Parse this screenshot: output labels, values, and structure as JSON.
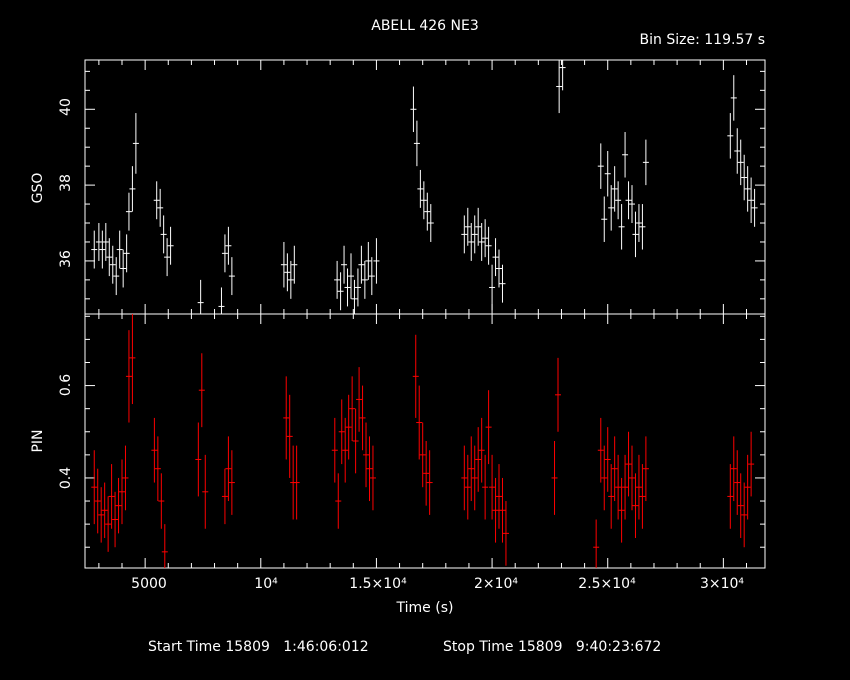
{
  "chart_data": [
    {
      "type": "scatter",
      "title": "ABELL 426 NE3",
      "subtitle": "Bin Size:  119.57 s",
      "ylabel": "GSO",
      "xlim": [
        2400,
        31800
      ],
      "ylim": [
        34.6,
        41.3
      ],
      "y_ticks": [
        "36",
        "38",
        "40"
      ],
      "grid": false,
      "color": "#ffffff",
      "points": [
        [
          2800,
          36.3,
          0.5
        ],
        [
          3000,
          36.5,
          0.5
        ],
        [
          3150,
          36.3,
          0.5
        ],
        [
          3300,
          36.5,
          0.5
        ],
        [
          3450,
          36.1,
          0.5
        ],
        [
          3600,
          35.9,
          0.5
        ],
        [
          3750,
          35.6,
          0.5
        ],
        [
          3900,
          36.3,
          0.5
        ],
        [
          4050,
          35.8,
          0.5
        ],
        [
          4200,
          36.2,
          0.5
        ],
        [
          4300,
          37.3,
          0.5
        ],
        [
          4450,
          37.9,
          0.6
        ],
        [
          4600,
          39.1,
          0.8
        ],
        [
          5500,
          37.6,
          0.5
        ],
        [
          5650,
          37.4,
          0.5
        ],
        [
          5800,
          36.7,
          0.5
        ],
        [
          5950,
          36.1,
          0.5
        ],
        [
          6100,
          36.4,
          0.5
        ],
        [
          7400,
          34.9,
          0.6
        ],
        [
          8300,
          34.8,
          0.5
        ],
        [
          8450,
          36.2,
          0.5
        ],
        [
          8600,
          36.4,
          0.5
        ],
        [
          8750,
          35.6,
          0.5
        ],
        [
          11000,
          35.9,
          0.6
        ],
        [
          11150,
          35.7,
          0.5
        ],
        [
          11300,
          35.5,
          0.5
        ],
        [
          11450,
          35.9,
          0.5
        ],
        [
          13300,
          35.5,
          0.5
        ],
        [
          13450,
          35.2,
          0.5
        ],
        [
          13600,
          35.9,
          0.5
        ],
        [
          13750,
          35.3,
          0.5
        ],
        [
          13900,
          35.6,
          0.6
        ],
        [
          14050,
          35.0,
          0.5
        ],
        [
          14200,
          35.3,
          0.5
        ],
        [
          14350,
          35.9,
          0.5
        ],
        [
          14500,
          35.5,
          0.5
        ],
        [
          14650,
          36.0,
          0.5
        ],
        [
          14800,
          35.6,
          0.5
        ],
        [
          15000,
          36.0,
          0.6
        ],
        [
          16600,
          40.0,
          0.6
        ],
        [
          16750,
          39.1,
          0.6
        ],
        [
          16900,
          37.9,
          0.5
        ],
        [
          17050,
          37.6,
          0.5
        ],
        [
          17200,
          37.3,
          0.5
        ],
        [
          17350,
          37.0,
          0.5
        ],
        [
          18800,
          36.7,
          0.5
        ],
        [
          18950,
          36.9,
          0.5
        ],
        [
          19100,
          36.5,
          0.5
        ],
        [
          19250,
          36.7,
          0.5
        ],
        [
          19400,
          36.9,
          0.5
        ],
        [
          19550,
          36.5,
          0.5
        ],
        [
          19700,
          36.6,
          0.5
        ],
        [
          19850,
          36.4,
          0.5
        ],
        [
          20000,
          35.3,
          0.6
        ],
        [
          20150,
          36.1,
          0.5
        ],
        [
          20300,
          35.8,
          0.5
        ],
        [
          20450,
          35.4,
          0.5
        ],
        [
          22900,
          40.6,
          0.7
        ],
        [
          23050,
          41.1,
          0.6
        ],
        [
          24700,
          38.5,
          0.6
        ],
        [
          24850,
          37.1,
          0.6
        ],
        [
          25000,
          38.3,
          0.6
        ],
        [
          25150,
          37.4,
          0.6
        ],
        [
          25300,
          37.9,
          0.6
        ],
        [
          25450,
          37.6,
          0.5
        ],
        [
          25600,
          36.9,
          0.6
        ],
        [
          25750,
          38.8,
          0.6
        ],
        [
          25900,
          37.6,
          0.5
        ],
        [
          26050,
          37.5,
          0.5
        ],
        [
          26200,
          36.7,
          0.6
        ],
        [
          26350,
          37.0,
          0.5
        ],
        [
          26500,
          36.9,
          0.6
        ],
        [
          26650,
          38.6,
          0.6
        ],
        [
          30300,
          39.3,
          0.6
        ],
        [
          30450,
          40.3,
          0.6
        ],
        [
          30600,
          38.9,
          0.6
        ],
        [
          30750,
          38.6,
          0.6
        ],
        [
          30900,
          38.2,
          0.6
        ],
        [
          31050,
          37.9,
          0.6
        ],
        [
          31200,
          37.6,
          0.6
        ],
        [
          31350,
          37.4,
          0.5
        ]
      ]
    },
    {
      "type": "scatter",
      "ylabel": "PIN",
      "xlabel": "Time (s)",
      "xlim": [
        2400,
        31800
      ],
      "ylim": [
        0.205,
        0.755
      ],
      "y_ticks": [
        "0.4",
        "0.6"
      ],
      "x_ticks": [
        "5000",
        "10⁴",
        "1.5×10⁴",
        "2×10⁴",
        "2.5×10⁴",
        "3×10⁴"
      ],
      "grid": false,
      "color": "#ff0000",
      "points": [
        [
          2800,
          0.38,
          0.08
        ],
        [
          2950,
          0.35,
          0.07
        ],
        [
          3100,
          0.32,
          0.06
        ],
        [
          3250,
          0.33,
          0.06
        ],
        [
          3400,
          0.3,
          0.06
        ],
        [
          3550,
          0.36,
          0.07
        ],
        [
          3700,
          0.31,
          0.06
        ],
        [
          3850,
          0.34,
          0.06
        ],
        [
          4000,
          0.37,
          0.07
        ],
        [
          4150,
          0.4,
          0.07
        ],
        [
          4300,
          0.62,
          0.1
        ],
        [
          4450,
          0.66,
          0.1
        ],
        [
          5400,
          0.46,
          0.07
        ],
        [
          5550,
          0.42,
          0.07
        ],
        [
          5700,
          0.35,
          0.06
        ],
        [
          5850,
          0.24,
          0.06
        ],
        [
          7300,
          0.44,
          0.08
        ],
        [
          7450,
          0.59,
          0.08
        ],
        [
          7600,
          0.37,
          0.08
        ],
        [
          8450,
          0.36,
          0.06
        ],
        [
          8600,
          0.42,
          0.07
        ],
        [
          8750,
          0.39,
          0.07
        ],
        [
          11100,
          0.53,
          0.09
        ],
        [
          11250,
          0.49,
          0.09
        ],
        [
          11400,
          0.39,
          0.08
        ],
        [
          11550,
          0.39,
          0.08
        ],
        [
          13200,
          0.46,
          0.07
        ],
        [
          13350,
          0.35,
          0.06
        ],
        [
          13500,
          0.5,
          0.07
        ],
        [
          13650,
          0.46,
          0.07
        ],
        [
          13800,
          0.51,
          0.07
        ],
        [
          13950,
          0.55,
          0.07
        ],
        [
          14100,
          0.48,
          0.07
        ],
        [
          14250,
          0.57,
          0.07
        ],
        [
          14400,
          0.53,
          0.07
        ],
        [
          14550,
          0.45,
          0.07
        ],
        [
          14700,
          0.42,
          0.07
        ],
        [
          14850,
          0.4,
          0.07
        ],
        [
          16700,
          0.62,
          0.09
        ],
        [
          16850,
          0.52,
          0.08
        ],
        [
          17000,
          0.45,
          0.07
        ],
        [
          17150,
          0.41,
          0.07
        ],
        [
          17300,
          0.39,
          0.07
        ],
        [
          18800,
          0.4,
          0.07
        ],
        [
          18950,
          0.38,
          0.07
        ],
        [
          19100,
          0.42,
          0.07
        ],
        [
          19250,
          0.4,
          0.07
        ],
        [
          19400,
          0.44,
          0.07
        ],
        [
          19550,
          0.46,
          0.07
        ],
        [
          19700,
          0.38,
          0.07
        ],
        [
          19850,
          0.51,
          0.08
        ],
        [
          20000,
          0.38,
          0.07
        ],
        [
          20150,
          0.33,
          0.07
        ],
        [
          20300,
          0.36,
          0.07
        ],
        [
          20450,
          0.33,
          0.07
        ],
        [
          20600,
          0.28,
          0.07
        ],
        [
          22700,
          0.4,
          0.08
        ],
        [
          22850,
          0.58,
          0.08
        ],
        [
          24500,
          0.25,
          0.06
        ],
        [
          24700,
          0.46,
          0.07
        ],
        [
          24850,
          0.4,
          0.07
        ],
        [
          25000,
          0.44,
          0.07
        ],
        [
          25150,
          0.36,
          0.07
        ],
        [
          25300,
          0.42,
          0.07
        ],
        [
          25450,
          0.38,
          0.07
        ],
        [
          25600,
          0.33,
          0.07
        ],
        [
          25750,
          0.38,
          0.07
        ],
        [
          25900,
          0.43,
          0.07
        ],
        [
          26050,
          0.4,
          0.07
        ],
        [
          26200,
          0.34,
          0.07
        ],
        [
          26350,
          0.38,
          0.07
        ],
        [
          26500,
          0.36,
          0.07
        ],
        [
          26650,
          0.42,
          0.07
        ],
        [
          30300,
          0.36,
          0.07
        ],
        [
          30450,
          0.42,
          0.07
        ],
        [
          30600,
          0.39,
          0.07
        ],
        [
          30750,
          0.34,
          0.07
        ],
        [
          30900,
          0.32,
          0.07
        ],
        [
          31050,
          0.38,
          0.07
        ],
        [
          31200,
          0.43,
          0.07
        ]
      ]
    }
  ],
  "footer": {
    "start_label": "Start Time 15809   1:46:06:012",
    "stop_label": "Stop Time 15809   9:40:23:672"
  }
}
